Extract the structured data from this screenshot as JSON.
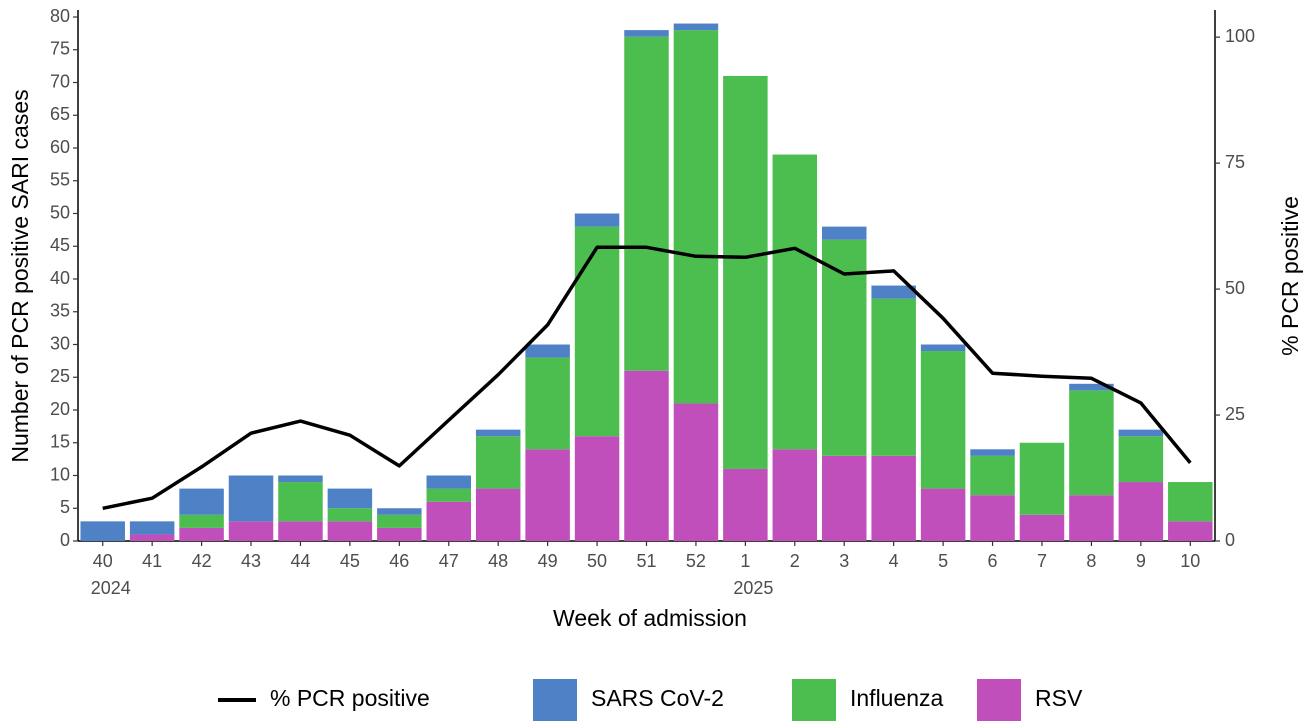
{
  "chart_data": {
    "type": "bar",
    "stacked": true,
    "x_label": "Week of admission",
    "y_label": "Number of PCR positive SARI cases",
    "y2_label": "% PCR positive",
    "categories": [
      "40",
      "41",
      "42",
      "43",
      "44",
      "45",
      "46",
      "47",
      "48",
      "49",
      "50",
      "51",
      "52",
      "1",
      "2",
      "3",
      "4",
      "5",
      "6",
      "7",
      "8",
      "9",
      "10"
    ],
    "category_years": [
      "2024",
      null,
      null,
      null,
      null,
      null,
      null,
      null,
      null,
      null,
      null,
      null,
      null,
      "2025",
      null,
      null,
      null,
      null,
      null,
      null,
      null,
      null,
      null
    ],
    "ylim": [
      0,
      80
    ],
    "yticks": [
      0,
      5,
      10,
      15,
      20,
      25,
      30,
      35,
      40,
      45,
      50,
      55,
      60,
      65,
      70,
      75,
      80
    ],
    "y2lim": [
      0,
      104
    ],
    "y2ticks": [
      0,
      25,
      50,
      75,
      100
    ],
    "grid": false,
    "legend": "bottom",
    "series": [
      {
        "name": "% PCR positive",
        "type": "line",
        "axis": "y2",
        "color": "#000000",
        "values": [
          6.5,
          8.5,
          14.7,
          21.4,
          23.8,
          21,
          14.9,
          24,
          33,
          42.9,
          58.3,
          58.3,
          56.5,
          56.3,
          58.1,
          53,
          53.6,
          44.2,
          33.3,
          32.7,
          32.3,
          27.4,
          15.5
        ]
      },
      {
        "name": "SARS CoV-2",
        "color": "#4f81c7",
        "values": [
          3,
          2,
          4,
          7,
          1,
          3,
          1,
          2,
          1,
          2,
          2,
          1,
          1,
          0,
          0,
          2,
          2,
          1,
          1,
          0,
          1,
          1,
          0
        ]
      },
      {
        "name": "Influenza",
        "color": "#4cbe50",
        "values": [
          0,
          0,
          2,
          0,
          6,
          2,
          2,
          2,
          8,
          14,
          32,
          51,
          57,
          60,
          45,
          33,
          24,
          21,
          6,
          11,
          16,
          7,
          6
        ]
      },
      {
        "name": "RSV",
        "color": "#c04fbc",
        "values": [
          0,
          1,
          2,
          3,
          3,
          3,
          2,
          6,
          8,
          14,
          16,
          26,
          21,
          11,
          14,
          13,
          13,
          8,
          7,
          4,
          7,
          9,
          3
        ]
      }
    ]
  }
}
